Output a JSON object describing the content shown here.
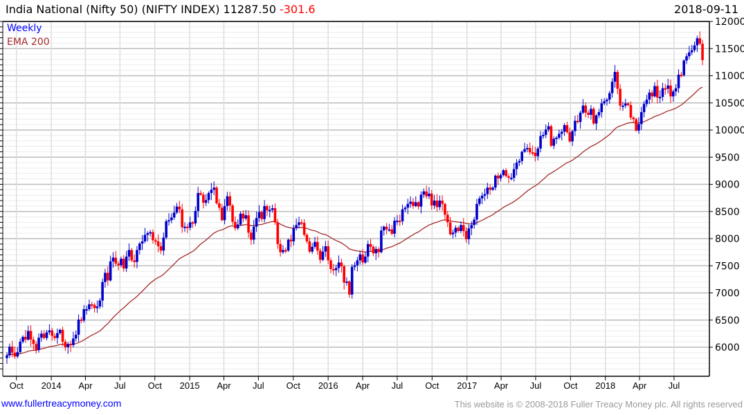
{
  "header": {
    "title": "India National (Nifty 50) (NIFTY INDEX) 11287.50",
    "change": "-301.6",
    "date": "2018-09-11"
  },
  "footer": {
    "link": "www.fullertreacymoney.com",
    "copyright": "This website is © 2008-2018 Fuller Treacy Money plc. All rights reserved"
  },
  "colors": {
    "up": "#0000cc",
    "down": "#ff0000",
    "ema": "#a52a2a",
    "change": "#ff0000"
  },
  "chart_data": {
    "type": "candlestick",
    "title": "India National (Nifty 50) (NIFTY INDEX)",
    "legend": [
      {
        "label": "Weekly",
        "color": "#0000ff"
      },
      {
        "label": "EMA 200",
        "color": "#a52a2a"
      }
    ],
    "legend_position": "top-left",
    "ylim": [
      5500,
      12000
    ],
    "y_ticks": [
      6000,
      6500,
      7000,
      7500,
      8000,
      8500,
      9000,
      9500,
      10000,
      10500,
      11000,
      11500,
      12000
    ],
    "start_week": "2013-09-06",
    "first_open": 5800,
    "x_ticks": [
      {
        "label": "Oct",
        "date": "2013-10-01"
      },
      {
        "label": "2014",
        "date": "2014-01-01"
      },
      {
        "label": "Apr",
        "date": "2014-04-01"
      },
      {
        "label": "Jul",
        "date": "2014-07-01"
      },
      {
        "label": "Oct",
        "date": "2014-10-01"
      },
      {
        "label": "2015",
        "date": "2015-01-01"
      },
      {
        "label": "Apr",
        "date": "2015-04-01"
      },
      {
        "label": "Jul",
        "date": "2015-07-01"
      },
      {
        "label": "Oct",
        "date": "2015-10-01"
      },
      {
        "label": "2016",
        "date": "2016-01-01"
      },
      {
        "label": "Apr",
        "date": "2016-04-01"
      },
      {
        "label": "Jul",
        "date": "2016-07-01"
      },
      {
        "label": "Oct",
        "date": "2016-10-01"
      },
      {
        "label": "2017",
        "date": "2017-01-01"
      },
      {
        "label": "Apr",
        "date": "2017-04-01"
      },
      {
        "label": "Jul",
        "date": "2017-07-01"
      },
      {
        "label": "Oct",
        "date": "2017-10-01"
      },
      {
        "label": "2018",
        "date": "2018-01-01"
      },
      {
        "label": "Apr",
        "date": "2018-04-01"
      },
      {
        "label": "Jul",
        "date": "2018-07-01"
      }
    ],
    "weekly_close": [
      5850,
      6010,
      5900,
      5830,
      5910,
      6100,
      6190,
      6140,
      6300,
      6140,
      6060,
      5950,
      6175,
      6250,
      6170,
      6275,
      6310,
      6210,
      6170,
      6260,
      6320,
      6100,
      6000,
      6060,
      6040,
      6160,
      6230,
      6510,
      6490,
      6700,
      6700,
      6790,
      6780,
      6720,
      6750,
      6860,
      7200,
      7370,
      7230,
      7580,
      7650,
      7540,
      7510,
      7630,
      7450,
      7670,
      7790,
      7600,
      7570,
      7790,
      7910,
      7950,
      8070,
      8100,
      8120,
      7970,
      7950,
      7860,
      7780,
      8020,
      8320,
      8340,
      8390,
      8480,
      8590,
      8540,
      8210,
      8220,
      8200,
      8300,
      8280,
      8510,
      8840,
      8810,
      8660,
      8710,
      8840,
      8900,
      8940,
      8650,
      8570,
      8340,
      8600,
      8780,
      8610,
      8310,
      8190,
      8260,
      8460,
      8370,
      8430,
      8110,
      7980,
      8220,
      8380,
      8490,
      8360,
      8600,
      8520,
      8530,
      8560,
      8300,
      7900,
      7750,
      7790,
      7780,
      7980,
      7950,
      8190,
      8250,
      8300,
      8290,
      8070,
      7950,
      7760,
      7850,
      7940,
      7780,
      7610,
      7760,
      7860,
      7600,
      7440,
      7420,
      7460,
      7560,
      7490,
      7190,
      7210,
      6970,
      7480,
      7510,
      7600,
      7710,
      7560,
      7670,
      7900,
      7850,
      7730,
      7810,
      7750,
      8150,
      8220,
      8170,
      8170,
      8090,
      8330,
      8330,
      8320,
      8540,
      8570,
      8640,
      8680,
      8600,
      8670,
      8590,
      8810,
      8870,
      8780,
      8830,
      8610,
      8700,
      8580,
      8700,
      8640,
      8440,
      8300,
      8080,
      8110,
      8200,
      8140,
      8250,
      8140,
      7990,
      8190,
      8250,
      8350,
      8640,
      8740,
      8790,
      8820,
      8940,
      8900,
      8940,
      9160,
      9110,
      9170,
      9260,
      9150,
      9120,
      9120,
      9280,
      9400,
      9430,
      9600,
      9650,
      9670,
      9590,
      9580,
      9520,
      9660,
      9890,
      9910,
      10010,
      10070,
      9710,
      9840,
      9860,
      9930,
      9970,
      10090,
      9960,
      9790,
      9980,
      10170,
      10150,
      10320,
      10450,
      10320,
      10280,
      10390,
      10120,
      10270,
      10330,
      10490,
      10530,
      10560,
      10680,
      10890,
      11070,
      10760,
      10450,
      10450,
      10490,
      10460,
      10230,
      10200,
      9990,
      10110,
      10330,
      10480,
      10560,
      10690,
      10620,
      10810,
      10600,
      10610,
      10770,
      10760,
      10820,
      10620,
      10710,
      10770,
      11020,
      11010,
      11280,
      11360,
      11430,
      11470,
      11560,
      11690,
      11590,
      11287.5
    ],
    "ema": {
      "label": "EMA 200",
      "seed": 5860,
      "smoothing_weeks": 40,
      "last_value": 10790
    }
  }
}
